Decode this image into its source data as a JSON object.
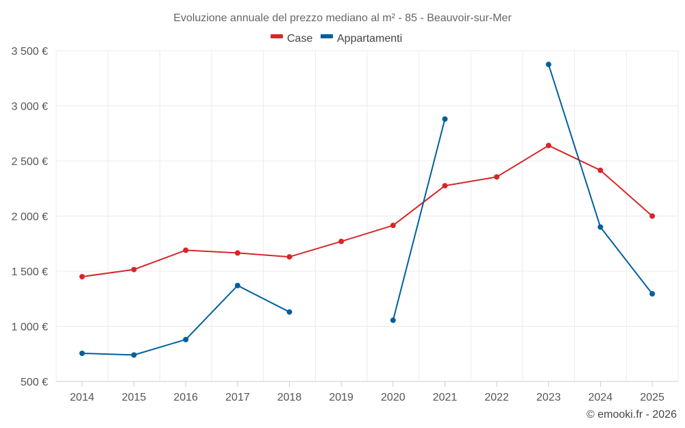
{
  "chart_data": {
    "type": "line",
    "title": "Evoluzione annuale del prezzo mediano al m² - 85 - Beauvoir-sur-Mer",
    "categories": [
      "2014",
      "2015",
      "2016",
      "2017",
      "2018",
      "2019",
      "2020",
      "2021",
      "2022",
      "2023",
      "2024",
      "2025"
    ],
    "y_tick_labels": [
      "3 500 €",
      "3 000 €",
      "2 500 €",
      "2 000 €",
      "1 500 €",
      "1 000 €",
      "500 €"
    ],
    "y_ticks": [
      3500,
      3000,
      2500,
      2000,
      1500,
      1000,
      500
    ],
    "ylim": [
      500,
      3500
    ],
    "grid": true,
    "legend_position": "top-center",
    "series": [
      {
        "name": "Case",
        "color": "#d62728",
        "values": [
          1450,
          1515,
          1690,
          1665,
          1630,
          1770,
          1915,
          2275,
          2355,
          2640,
          2415,
          2000
        ]
      },
      {
        "name": "Appartamenti",
        "color": "#00609a",
        "values": [
          755,
          740,
          880,
          1370,
          1130,
          null,
          1055,
          2880,
          null,
          3375,
          1900,
          1295
        ]
      }
    ],
    "credit": "© emooki.fr - 2026"
  }
}
